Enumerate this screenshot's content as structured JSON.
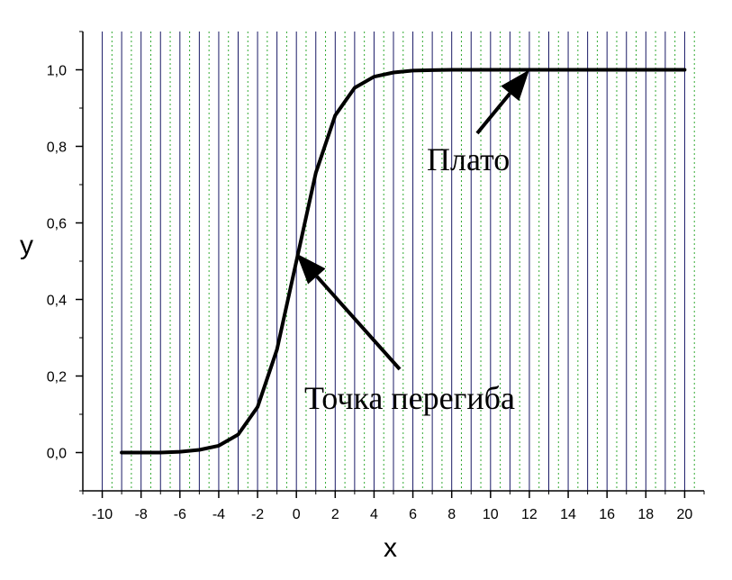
{
  "chart_data": {
    "type": "line",
    "xlabel": "x",
    "ylabel": "y",
    "xlim": [
      -11,
      21
    ],
    "ylim": [
      -0.1,
      1.1
    ],
    "x_ticks": [
      -10,
      -8,
      -6,
      -4,
      -2,
      0,
      2,
      4,
      6,
      8,
      10,
      12,
      14,
      16,
      18,
      20
    ],
    "x_tick_labels": [
      "-10",
      "-8",
      "-6",
      "-4",
      "-2",
      "0",
      "2",
      "4",
      "6",
      "8",
      "10",
      "12",
      "14",
      "16",
      "18",
      "20"
    ],
    "y_ticks": [
      0.0,
      0.2,
      0.4,
      0.6,
      0.8,
      1.0
    ],
    "y_tick_labels": [
      "0,0",
      "0,2",
      "0,4",
      "0,6",
      "0,8",
      "1,0"
    ],
    "grid": {
      "major_vertical": true,
      "major_color": "#1a1a66",
      "minor_vertical": true,
      "minor_color": "#33aa33",
      "minor_style": "dotted"
    },
    "series": [
      {
        "color": "#000000",
        "x": [
          -9,
          -8,
          -7,
          -6,
          -5,
          -4,
          -3,
          -2,
          -1,
          0,
          1,
          2,
          3,
          4,
          5,
          6,
          7,
          8,
          9,
          10,
          11,
          12,
          13,
          14,
          15,
          16,
          17,
          18,
          19,
          20
        ],
        "y": [
          0.0,
          0.0,
          0.0,
          0.002,
          0.007,
          0.018,
          0.047,
          0.119,
          0.269,
          0.5,
          0.731,
          0.881,
          0.953,
          0.982,
          0.993,
          0.998,
          0.999,
          1.0,
          1.0,
          1.0,
          1.0,
          1.0,
          1.0,
          1.0,
          1.0,
          1.0,
          1.0,
          1.0,
          1.0,
          1.0
        ]
      }
    ],
    "annotations": [
      {
        "text": "Плато",
        "arrow_to": [
          12,
          1.0
        ]
      },
      {
        "text": "Точка перегиба",
        "arrow_to": [
          0,
          0.52
        ]
      }
    ]
  }
}
